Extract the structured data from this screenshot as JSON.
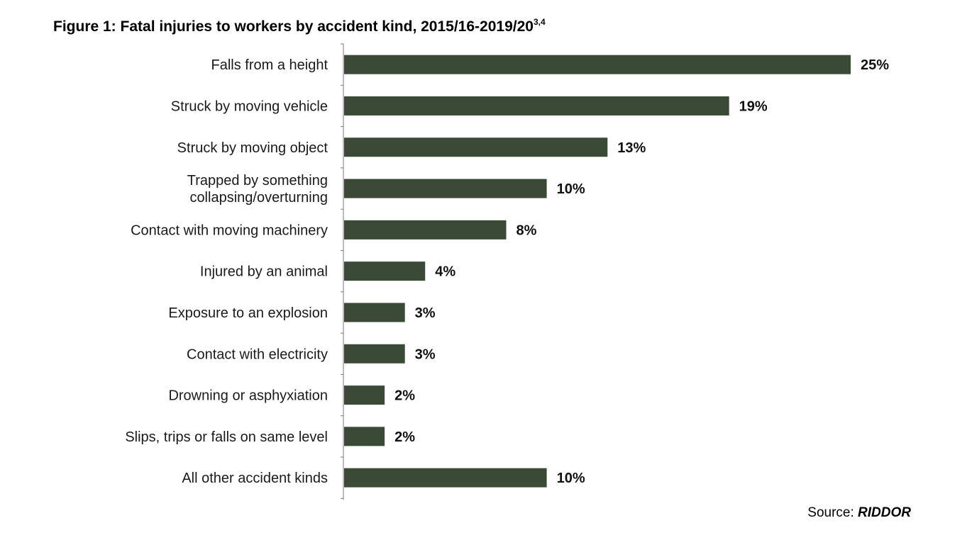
{
  "chart_data": {
    "type": "bar",
    "orientation": "horizontal",
    "title": "Figure 1: Fatal injuries to workers by accident kind, 2015/16-2019/20",
    "title_superscript": "3,4",
    "categories": [
      "Falls from a height",
      "Struck by moving vehicle",
      "Struck by moving object",
      "Trapped by something collapsing/overturning",
      "Contact with moving machinery",
      "Injured by an animal",
      "Exposure to an explosion",
      "Contact with electricity",
      "Drowning or asphyxiation",
      "Slips, trips or falls on same level",
      "All other accident kinds"
    ],
    "category_lines": [
      [
        "Falls from a height"
      ],
      [
        "Struck by moving vehicle"
      ],
      [
        "Struck by moving object"
      ],
      [
        "Trapped by something",
        "collapsing/overturning"
      ],
      [
        "Contact with moving machinery"
      ],
      [
        "Injured by an animal"
      ],
      [
        "Exposure to an explosion"
      ],
      [
        "Contact with electricity"
      ],
      [
        "Drowning or asphyxiation"
      ],
      [
        "Slips, trips or falls on same level"
      ],
      [
        "All other accident kinds"
      ]
    ],
    "values": [
      25,
      19,
      13,
      10,
      8,
      4,
      3,
      3,
      2,
      2,
      10
    ],
    "value_labels": [
      "25%",
      "19%",
      "13%",
      "10%",
      "8%",
      "4%",
      "3%",
      "3%",
      "2%",
      "2%",
      "10%"
    ],
    "xlim": [
      0,
      25
    ],
    "xlabel": "",
    "ylabel": "",
    "grid": false,
    "legend": "none",
    "bar_color": "#3b4a37"
  },
  "source": {
    "prefix": "Source: ",
    "name": "RIDDOR"
  }
}
